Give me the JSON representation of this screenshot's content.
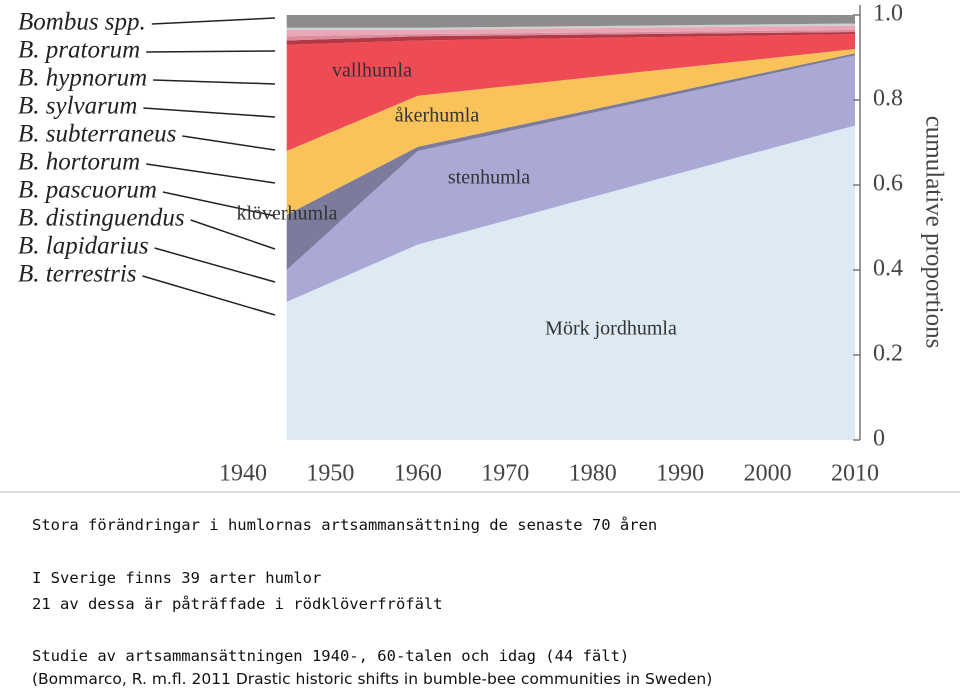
{
  "chart_data": {
    "type": "stacked_area",
    "x": [
      1945,
      1960,
      2010
    ],
    "xlim": [
      1940,
      2010
    ],
    "xticks": [
      1940,
      1950,
      1960,
      1970,
      1980,
      1990,
      2000,
      2010
    ],
    "ylim": [
      0,
      1
    ],
    "yticks": [
      0,
      0.2,
      0.4,
      0.6,
      0.8,
      {
        "value": 1,
        "label": "1.0"
      }
    ],
    "y_label": "cumulative proportions",
    "series": [
      {
        "name": "B. terrestris",
        "color": "#dde9f3",
        "values": [
          0.325,
          0.46,
          0.74
        ]
      },
      {
        "name": "B. lapidarius",
        "color": "#aaa9d6",
        "values": [
          0.075,
          0.22,
          0.165
        ]
      },
      {
        "name": "B. distinguendus",
        "color": "#7c7b9c",
        "values": [
          0.13,
          0.01,
          0.005
        ]
      },
      {
        "name": "B. pascuorum",
        "color": "#f9c35a",
        "values": [
          0.15,
          0.12,
          0.01
        ]
      },
      {
        "name": "B. hortorum",
        "color": "#ee4b55",
        "values": [
          0.25,
          0.13,
          0.035
        ]
      },
      {
        "name": "B. subterraneus",
        "color": "#b53845",
        "values": [
          0.01,
          0.01,
          0.005
        ]
      },
      {
        "name": "B. sylvarum",
        "color": "#d98c9c",
        "values": [
          0.01,
          0.005,
          0.005
        ]
      },
      {
        "name": "B. hypnorum",
        "color": "#eaa6b6",
        "values": [
          0.015,
          0.01,
          0.01
        ]
      },
      {
        "name": "B. pratorum",
        "color": "#cfcfcf",
        "values": [
          0.005,
          0.005,
          0.005
        ]
      },
      {
        "name": "Bombus spp.",
        "color": "#8c8c8c",
        "values": [
          0.03,
          0.03,
          0.02
        ]
      }
    ],
    "annotations": [
      "vallhumla",
      "åkerhumla",
      "stenhumla",
      "klöverhumla",
      "Mörk jordhumla"
    ]
  },
  "text": {
    "heading": "Stora förändringar i humlornas artsammansättning de senaste 70 åren",
    "lines": [
      "I Sverige finns 39 arter humlor",
      "21 av dessa är påträffade i rödklöverfröfält"
    ],
    "study": "Studie av artsammansättningen 1940-, 60-talen och idag (44 fält)",
    "reference": "(Bommarco, R. m.fl. 2011 Drastic historic shifts in bumble-bee communities in Sweden)"
  }
}
